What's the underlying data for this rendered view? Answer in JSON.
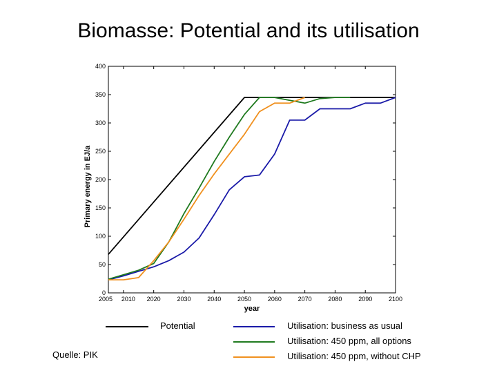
{
  "slide": {
    "title": "Biomasse: Potential and its utilisation",
    "source": "Quelle: PIK"
  },
  "chart_data": {
    "type": "line",
    "title": "",
    "xlabel": "year",
    "ylabel": "Primary energy in EJ/a",
    "xlim": [
      2005,
      2100
    ],
    "ylim": [
      0,
      400
    ],
    "x_ticks": [
      2005,
      2010,
      2020,
      2030,
      2040,
      2050,
      2060,
      2070,
      2080,
      2090,
      2100
    ],
    "y_ticks": [
      0,
      50,
      100,
      150,
      200,
      250,
      300,
      350,
      400
    ],
    "grid": false,
    "legend": "below",
    "series": [
      {
        "name": "Potential",
        "color": "#000000",
        "x": [
          2005,
          2050,
          2100
        ],
        "y": [
          68,
          345,
          345
        ]
      },
      {
        "name": "Utilisation: business as usual",
        "color": "#1a1aa8",
        "x": [
          2005,
          2010,
          2015,
          2020,
          2025,
          2030,
          2035,
          2040,
          2045,
          2050,
          2055,
          2060,
          2065,
          2070,
          2075,
          2080,
          2085,
          2090,
          2095,
          2100
        ],
        "y": [
          23,
          30,
          38,
          46,
          57,
          72,
          97,
          138,
          182,
          205,
          208,
          245,
          305,
          305,
          325,
          325,
          325,
          335,
          335,
          345
        ]
      },
      {
        "name": "Utilisation: 450 ppm, all options",
        "color": "#1f7a1f",
        "x": [
          2005,
          2010,
          2015,
          2020,
          2025,
          2030,
          2035,
          2040,
          2045,
          2050,
          2055,
          2060,
          2065,
          2070,
          2075,
          2080,
          2085
        ],
        "y": [
          24,
          32,
          40,
          52,
          90,
          140,
          185,
          232,
          275,
          315,
          345,
          345,
          340,
          335,
          343,
          345,
          345
        ]
      },
      {
        "name": "Utilisation: 450 ppm, without CHP",
        "color": "#f0901e",
        "x": [
          2005,
          2010,
          2015,
          2020,
          2025,
          2030,
          2035,
          2040,
          2045,
          2050,
          2055,
          2060,
          2065,
          2070
        ],
        "y": [
          23,
          23,
          27,
          57,
          90,
          130,
          172,
          210,
          245,
          280,
          320,
          335,
          335,
          345
        ]
      }
    ]
  }
}
